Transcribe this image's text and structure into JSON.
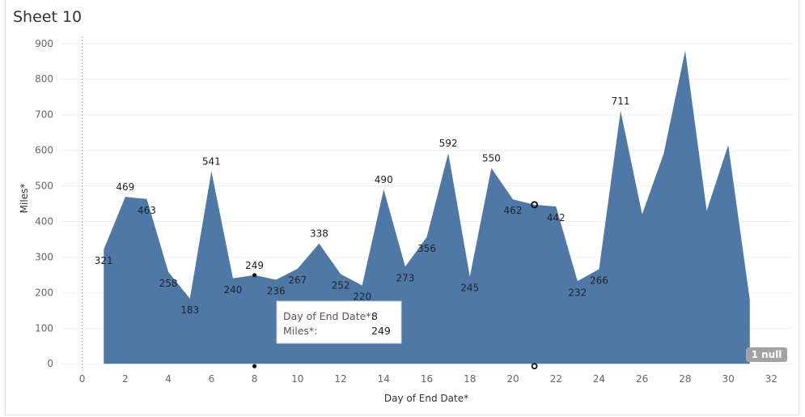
{
  "sheet": {
    "title": "Sheet 10",
    "null_badge": "1 null"
  },
  "tooltip": {
    "label1": "Day of End Date*:",
    "value1": "8",
    "label2": "Miles*:",
    "value2": "249"
  },
  "chart_data": {
    "type": "area",
    "xlabel": "Day of End Date*",
    "ylabel": "Miles*",
    "xlim": [
      -1,
      33
    ],
    "ylim": [
      -20,
      920
    ],
    "x_ticks": [
      0,
      2,
      4,
      6,
      8,
      10,
      12,
      14,
      16,
      18,
      20,
      22,
      24,
      26,
      28,
      30,
      32
    ],
    "y_ticks": [
      0,
      100,
      200,
      300,
      400,
      500,
      600,
      700,
      800,
      900
    ],
    "grid": true,
    "color": "#4e79a7",
    "reference_line_x": 0,
    "series": [
      {
        "x": [
          1,
          2,
          3,
          4,
          5,
          6,
          7,
          8,
          9,
          10,
          11,
          12,
          13,
          14,
          15,
          16,
          17,
          18,
          19,
          20,
          21,
          22,
          23,
          24,
          25,
          26,
          27,
          28,
          29,
          30,
          31
        ],
        "values": [
          321,
          469,
          463,
          258,
          183,
          541,
          240,
          249,
          236,
          267,
          338,
          252,
          220,
          490,
          273,
          356,
          592,
          245,
          550,
          462,
          447,
          442,
          232,
          266,
          711,
          420,
          590,
          880,
          430,
          615,
          180
        ]
      }
    ],
    "data_labels": [
      {
        "x": 1,
        "text": "321"
      },
      {
        "x": 2,
        "text": "469"
      },
      {
        "x": 3,
        "text": "463"
      },
      {
        "x": 4,
        "text": "258"
      },
      {
        "x": 5,
        "text": "183"
      },
      {
        "x": 6,
        "text": "541"
      },
      {
        "x": 7,
        "text": "240"
      },
      {
        "x": 8,
        "text": "249"
      },
      {
        "x": 9,
        "text": "236"
      },
      {
        "x": 10,
        "text": "267"
      },
      {
        "x": 11,
        "text": "338"
      },
      {
        "x": 12,
        "text": "252"
      },
      {
        "x": 13,
        "text": "220"
      },
      {
        "x": 14,
        "text": "490"
      },
      {
        "x": 15,
        "text": "273"
      },
      {
        "x": 16,
        "text": "356"
      },
      {
        "x": 17,
        "text": "592"
      },
      {
        "x": 18,
        "text": "245"
      },
      {
        "x": 19,
        "text": "550"
      },
      {
        "x": 20,
        "text": "462"
      },
      {
        "x": 22,
        "text": "442"
      },
      {
        "x": 23,
        "text": "232"
      },
      {
        "x": 24,
        "text": "266"
      },
      {
        "x": 25,
        "text": "711"
      }
    ],
    "highlight_points": [
      8,
      21
    ]
  }
}
